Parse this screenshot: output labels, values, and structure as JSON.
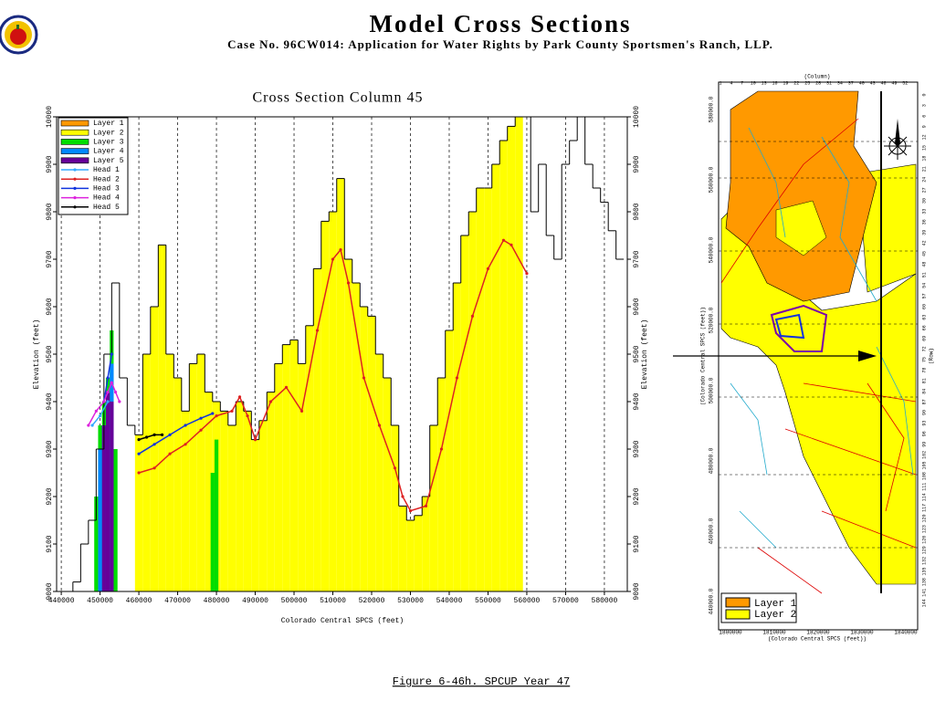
{
  "header": {
    "title": "Model Cross Sections",
    "subtitle": "Case No. 96CW014: Application for Water Rights by Park County Sportsmen's Ranch, LLP.",
    "caption": "Figure 6-46h.  SPCUP Year 47"
  },
  "chart_data": {
    "type": "cross-section",
    "title": "Cross Section Column 45",
    "x_label": "Colorado Central SPCS (feet)",
    "y_label": "Elevation (feet)",
    "xlim": [
      438800,
      585900
    ],
    "ylim": [
      9000,
      10000
    ],
    "xticks": [
      440000,
      450000,
      460000,
      470000,
      480000,
      490000,
      500000,
      510000,
      520000,
      530000,
      540000,
      550000,
      560000,
      570000,
      580000
    ],
    "yticks": [
      9000,
      9100,
      9200,
      9300,
      9400,
      9500,
      9600,
      9700,
      9800,
      9900,
      10000
    ],
    "grid": true,
    "legend": "upper left",
    "series": [
      {
        "name": "Layer 1",
        "kind": "outline",
        "color": "#ff9900",
        "x": [
          442000,
          444000,
          446000,
          448000,
          450000,
          452000,
          454000,
          456000,
          458000,
          460000,
          462000,
          464000,
          466000,
          468000,
          470000,
          472000,
          474000,
          476000,
          478000,
          480000,
          482000,
          484000,
          486000,
          488000,
          490000,
          492000,
          494000,
          496000,
          498000,
          500000,
          502000,
          504000,
          506000,
          508000,
          510000,
          512000,
          514000,
          516000,
          518000,
          520000,
          522000,
          524000,
          526000,
          528000,
          530000,
          532000,
          534000,
          536000,
          538000,
          540000,
          542000,
          544000,
          546000,
          548000,
          550000,
          552000,
          554000,
          556000,
          558000,
          560000,
          562000,
          564000,
          566000,
          568000,
          570000,
          572000,
          574000,
          576000,
          578000,
          580000,
          582000,
          584000
        ],
        "values": [
          9000,
          9020,
          9100,
          9150,
          9300,
          9500,
          9650,
          9450,
          9350,
          9330,
          9500,
          9600,
          9730,
          9500,
          9450,
          9380,
          9480,
          9500,
          9420,
          9400,
          9380,
          9350,
          9400,
          9380,
          9320,
          9360,
          9420,
          9480,
          9520,
          9530,
          9480,
          9560,
          9680,
          9780,
          9800,
          9870,
          9700,
          9650,
          9600,
          9580,
          9500,
          9450,
          9350,
          9180,
          9150,
          9160,
          9200,
          9350,
          9450,
          9550,
          9650,
          9750,
          9800,
          9850,
          9850,
          9900,
          9950,
          9980,
          10000,
          10000,
          9800,
          9900,
          9750,
          9700,
          9900,
          9950,
          10000,
          9900,
          9850,
          9820,
          9760,
          9700
        ]
      },
      {
        "name": "Layer 2",
        "kind": "area",
        "color": "#ffff00",
        "x": [
          460000,
          462000,
          464000,
          466000,
          468000,
          470000,
          472000,
          474000,
          476000,
          478000,
          480000,
          482000,
          484000,
          486000,
          488000,
          490000,
          492000,
          494000,
          496000,
          498000,
          500000,
          502000,
          504000,
          506000,
          508000,
          510000,
          512000,
          514000,
          516000,
          518000,
          520000,
          522000,
          524000,
          526000,
          528000,
          530000,
          532000,
          534000,
          536000,
          538000,
          540000,
          542000,
          544000,
          546000,
          548000,
          550000,
          552000,
          554000,
          556000,
          558000
        ],
        "values": [
          9330,
          9500,
          9600,
          9730,
          9500,
          9450,
          9380,
          9480,
          9500,
          9420,
          9400,
          9380,
          9350,
          9400,
          9380,
          9320,
          9360,
          9420,
          9480,
          9520,
          9530,
          9480,
          9560,
          9680,
          9780,
          9800,
          9870,
          9700,
          9650,
          9600,
          9580,
          9500,
          9450,
          9350,
          9180,
          9150,
          9160,
          9200,
          9350,
          9450,
          9550,
          9650,
          9750,
          9800,
          9850,
          9850,
          9900,
          9950,
          9980,
          10000
        ]
      },
      {
        "name": "Layer 3",
        "kind": "area",
        "color": "#00dd00",
        "x": [
          449000,
          450000,
          451000,
          452000,
          453000,
          454000,
          479000,
          480000
        ],
        "values": [
          9200,
          9350,
          9400,
          9450,
          9550,
          9300,
          9250,
          9320
        ]
      },
      {
        "name": "Layer 4",
        "kind": "area",
        "color": "#0088ff",
        "x": [
          450000,
          451000,
          452000,
          453000
        ],
        "values": [
          9300,
          9350,
          9400,
          9480
        ]
      },
      {
        "name": "Layer 5",
        "kind": "area",
        "color": "#660099",
        "x": [
          451000,
          452000,
          453000
        ],
        "values": [
          9350,
          9420,
          9400
        ]
      },
      {
        "name": "Head 1",
        "kind": "line",
        "color": "#33aaff",
        "x": [
          448000,
          450000,
          452000
        ],
        "values": [
          9350,
          9370,
          9400
        ]
      },
      {
        "name": "Head 2",
        "kind": "line",
        "color": "#dd2222",
        "x": [
          460000,
          464000,
          468000,
          472000,
          476000,
          480000,
          484000,
          486000,
          488000,
          490000,
          494000,
          498000,
          502000,
          506000,
          510000,
          512000,
          514000,
          518000,
          522000,
          526000,
          528000,
          530000,
          534000,
          538000,
          542000,
          546000,
          550000,
          554000,
          556000,
          560000
        ],
        "values": [
          9250,
          9260,
          9290,
          9310,
          9340,
          9370,
          9380,
          9410,
          9370,
          9320,
          9400,
          9430,
          9380,
          9550,
          9700,
          9720,
          9650,
          9450,
          9350,
          9260,
          9200,
          9170,
          9180,
          9300,
          9450,
          9580,
          9680,
          9740,
          9730,
          9670
        ]
      },
      {
        "name": "Head 3",
        "kind": "line",
        "color": "#1133dd",
        "x": [
          451000,
          452000,
          453000,
          458000,
          460000,
          464000,
          468000,
          472000,
          476000,
          479000
        ],
        "values": [
          9400,
          9450,
          9500,
          null,
          9290,
          9310,
          9330,
          9350,
          9365,
          9375
        ]
      },
      {
        "name": "Head 4",
        "kind": "line",
        "color": "#dd22dd",
        "x": [
          447000,
          449000,
          451000,
          452000,
          453000,
          454000,
          455000
        ],
        "values": [
          9350,
          9380,
          9400,
          9420,
          9440,
          9420,
          9400
        ]
      },
      {
        "name": "Head 5",
        "kind": "line",
        "color": "#000000",
        "x": [
          460000,
          462000,
          464000,
          466000
        ],
        "values": [
          9320,
          9325,
          9330,
          9330
        ]
      }
    ]
  },
  "map": {
    "column_label": "(Column)",
    "row_label": "(Row)",
    "x_label": "(Colorado Central SPCS (feet))",
    "y_label": "(Colorado Central SPCS (feet))",
    "column_ticks": [
      "1",
      "4",
      "7",
      "10",
      "13",
      "16",
      "19",
      "22",
      "25",
      "28",
      "31",
      "34",
      "37",
      "40",
      "43",
      "46",
      "49",
      "52"
    ],
    "row_ticks": [
      "0",
      "3",
      "6",
      "9",
      "12",
      "15",
      "18",
      "21",
      "24",
      "27",
      "30",
      "33",
      "36",
      "39",
      "42",
      "45",
      "48",
      "51",
      "54",
      "57",
      "60",
      "63",
      "66",
      "69",
      "72",
      "75",
      "78",
      "81",
      "84",
      "87",
      "90",
      "93",
      "96",
      "99",
      "102",
      "105",
      "108",
      "111",
      "114",
      "117",
      "120",
      "123",
      "126",
      "129",
      "132",
      "135",
      "138",
      "141",
      "144"
    ],
    "x_ticks": [
      "1800000",
      "1810000",
      "1820000",
      "1830000",
      "1840000"
    ],
    "y_ticks": [
      "580000.0",
      "560000.0",
      "540000.0",
      "520000.0",
      "500000.0",
      "480000.0",
      "460000.0",
      "440000.0"
    ],
    "legend": [
      "Layer 1",
      "Layer 2"
    ]
  }
}
